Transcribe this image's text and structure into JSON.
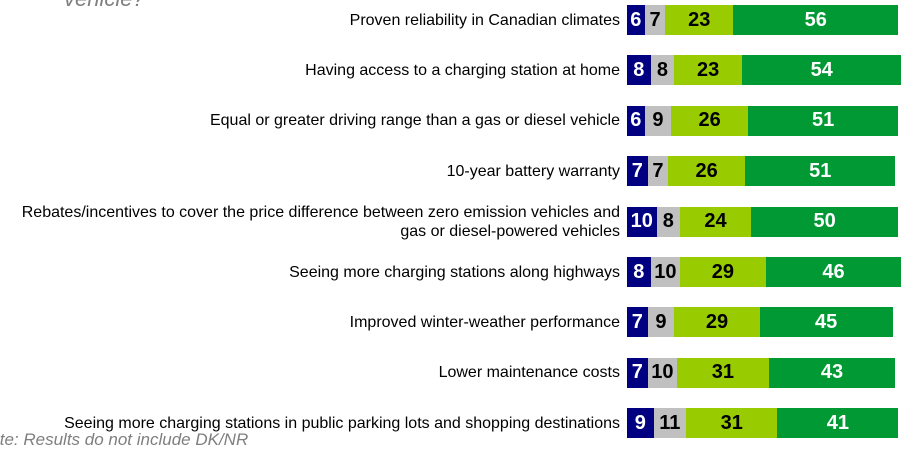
{
  "chart_data": {
    "type": "stacked-bar-horizontal",
    "title": "vehicle?",
    "note": "Note: Results do not include DK/NR",
    "categories": [
      "Proven reliability in Canadian climates",
      "Having access to a charging station at home",
      "Equal or greater driving range than a gas or diesel vehicle",
      "10-year battery warranty",
      "Rebates/incentives to cover the price difference between zero emission vehicles and gas or diesel-powered vehicles",
      "Seeing more charging stations along highways",
      "Improved winter-weather performance",
      "Lower maintenance costs",
      "Seeing more charging stations in public parking lots and shopping destinations"
    ],
    "series": [
      {
        "color": "#000080",
        "values": [
          6,
          8,
          6,
          7,
          10,
          8,
          7,
          7,
          9
        ]
      },
      {
        "color": "#c0c0c0",
        "values": [
          7,
          8,
          9,
          7,
          8,
          10,
          9,
          10,
          11
        ]
      },
      {
        "color": "#99cc00",
        "values": [
          23,
          23,
          26,
          26,
          24,
          29,
          29,
          31,
          31
        ]
      },
      {
        "color": "#009933",
        "values": [
          56,
          54,
          51,
          51,
          50,
          46,
          45,
          43,
          41
        ]
      }
    ]
  }
}
